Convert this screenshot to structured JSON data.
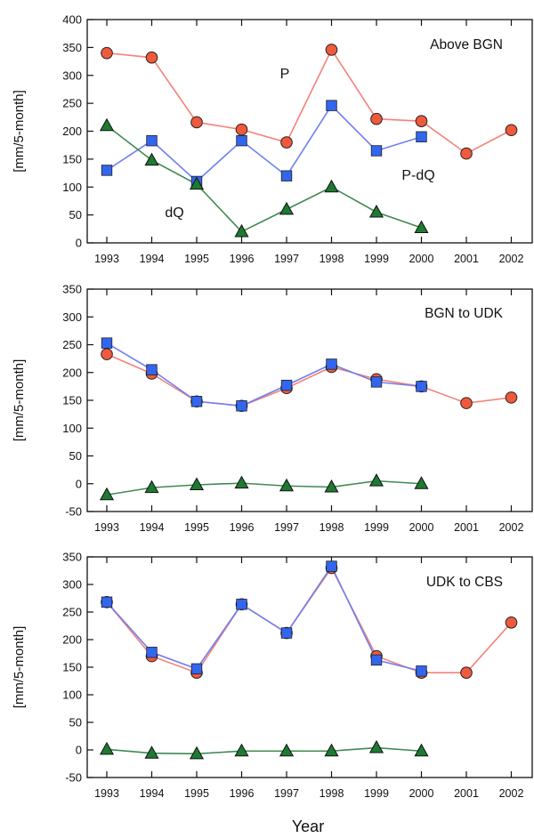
{
  "colors": {
    "P": "#f05a3c",
    "P_dQ": "#3366ee",
    "dQ": "#1e7a32",
    "P_line": "#f4827a",
    "P_dQ_line": "#6f7ff0",
    "dQ_line": "#3f8a52"
  },
  "xlabel": "Year",
  "chart_data": [
    {
      "type": "line",
      "title": "Above BGN",
      "ylabel": "[mm/5-month]",
      "ylim": [
        0,
        400
      ],
      "yticks": [
        0,
        50,
        100,
        150,
        200,
        250,
        300,
        350,
        400
      ],
      "categories": [
        "1993",
        "1994",
        "1995",
        "1996",
        "1997",
        "1998",
        "1999",
        "2000",
        "2001",
        "2002"
      ],
      "series": [
        {
          "name": "P",
          "marker": "circle",
          "values": [
            340,
            332,
            216,
            203,
            180,
            346,
            222,
            218,
            160,
            202
          ]
        },
        {
          "name": "P-dQ",
          "marker": "square",
          "values": [
            130,
            183,
            110,
            183,
            120,
            246,
            165,
            190,
            null,
            null
          ]
        },
        {
          "name": "dQ",
          "marker": "triangle",
          "values": [
            210,
            148,
            105,
            20,
            60,
            100,
            55,
            27,
            null,
            null
          ]
        }
      ],
      "annotations": [
        {
          "text": "P",
          "series": "P"
        },
        {
          "text": "P-dQ",
          "series": "P-dQ"
        },
        {
          "text": "dQ",
          "series": "dQ"
        }
      ]
    },
    {
      "type": "line",
      "title": "BGN to UDK",
      "ylabel": "[mm/5-month]",
      "ylim": [
        -50,
        350
      ],
      "yticks": [
        -50,
        0,
        50,
        100,
        150,
        200,
        250,
        300,
        350
      ],
      "categories": [
        "1993",
        "1994",
        "1995",
        "1996",
        "1997",
        "1998",
        "1999",
        "2000",
        "2001",
        "2002"
      ],
      "series": [
        {
          "name": "P",
          "marker": "circle",
          "values": [
            233,
            198,
            148,
            140,
            172,
            210,
            188,
            175,
            145,
            155
          ]
        },
        {
          "name": "P-dQ",
          "marker": "square",
          "values": [
            253,
            205,
            148,
            140,
            177,
            215,
            183,
            175,
            null,
            null
          ]
        },
        {
          "name": "dQ",
          "marker": "triangle",
          "values": [
            -20,
            -7,
            -2,
            1,
            -4,
            -6,
            5,
            0,
            null,
            null
          ]
        }
      ]
    },
    {
      "type": "line",
      "title": "UDK to CBS",
      "ylabel": "[mm/5-month]",
      "ylim": [
        -50,
        350
      ],
      "yticks": [
        -50,
        0,
        50,
        100,
        150,
        200,
        250,
        300,
        350
      ],
      "categories": [
        "1993",
        "1994",
        "1995",
        "1996",
        "1997",
        "1998",
        "1999",
        "2000",
        "2001",
        "2002"
      ],
      "series": [
        {
          "name": "P",
          "marker": "circle",
          "values": [
            268,
            170,
            140,
            264,
            212,
            330,
            170,
            140,
            140,
            231
          ]
        },
        {
          "name": "P-dQ",
          "marker": "square",
          "values": [
            268,
            177,
            147,
            264,
            212,
            333,
            163,
            143,
            null,
            null
          ]
        },
        {
          "name": "dQ",
          "marker": "triangle",
          "values": [
            1,
            -6,
            -7,
            -2,
            -2,
            -2,
            4,
            -2,
            null,
            null
          ]
        }
      ]
    }
  ]
}
